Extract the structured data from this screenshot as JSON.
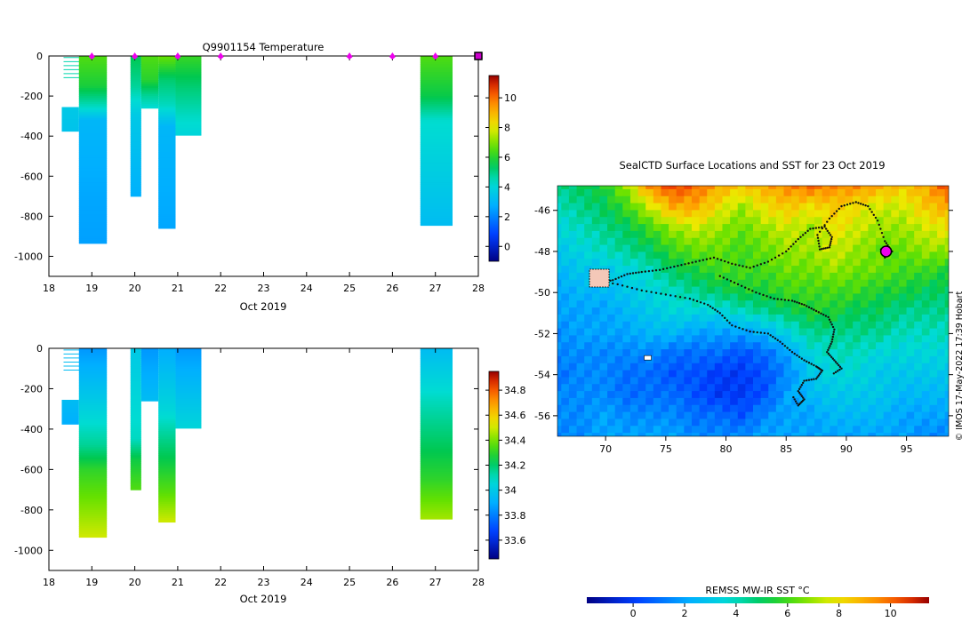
{
  "chart_data": [
    {
      "type": "heatmap",
      "title": "Q9901154  Temperature",
      "xlabel": "Oct 2019",
      "ylabel": "",
      "xlim": [
        18,
        28
      ],
      "ylim": [
        -1100,
        0
      ],
      "xticks": [
        "18",
        "19",
        "20",
        "21",
        "22",
        "23",
        "24",
        "25",
        "26",
        "27",
        "28"
      ],
      "yticks": [
        "0",
        "-200",
        "-400",
        "-600",
        "-800",
        "-1000"
      ],
      "colorbar": {
        "min": -1,
        "max": 11.5,
        "ticks": [
          "0",
          "2",
          "4",
          "6",
          "8",
          "10"
        ]
      },
      "profile_markers": [
        19,
        20,
        21,
        22,
        25,
        26,
        27
      ],
      "end_marker": 28,
      "profiles": [
        {
          "x0": 18.3,
          "x1": 18.7,
          "bottom": -375,
          "stops": [
            [
              0,
              4.6
            ],
            [
              -100,
              4.6
            ],
            [
              -255,
              4.2
            ],
            [
              -260,
              3.6
            ],
            [
              -375,
              3.4
            ]
          ],
          "partial_top": -255
        },
        {
          "x0": 18.7,
          "x1": 19.35,
          "bottom": -935,
          "stops": [
            [
              0,
              6.5
            ],
            [
              -150,
              5.8
            ],
            [
              -260,
              4.3
            ],
            [
              -320,
              3.0
            ],
            [
              -720,
              2.6
            ],
            [
              -935,
              2.5
            ]
          ]
        },
        {
          "x0": 19.9,
          "x1": 20.15,
          "bottom": -700,
          "stops": [
            [
              0,
              5.5
            ],
            [
              -150,
              4.8
            ],
            [
              -300,
              3.6
            ],
            [
              -700,
              2.8
            ]
          ]
        },
        {
          "x0": 20.15,
          "x1": 20.55,
          "bottom": -260,
          "stops": [
            [
              0,
              6.5
            ],
            [
              -120,
              6.0
            ],
            [
              -200,
              4.8
            ],
            [
              -260,
              4.2
            ]
          ]
        },
        {
          "x0": 20.55,
          "x1": 20.95,
          "bottom": -860,
          "stops": [
            [
              0,
              6.8
            ],
            [
              -120,
              5.2
            ],
            [
              -250,
              4.4
            ],
            [
              -350,
              3.0
            ],
            [
              -860,
              2.6
            ]
          ]
        },
        {
          "x0": 20.95,
          "x1": 21.55,
          "bottom": -395,
          "stops": [
            [
              0,
              6.2
            ],
            [
              -150,
              5.2
            ],
            [
              -300,
              4.4
            ],
            [
              -395,
              4.0
            ]
          ]
        },
        {
          "x0": 26.65,
          "x1": 27.4,
          "bottom": -845,
          "stops": [
            [
              0,
              6.5
            ],
            [
              -200,
              5.6
            ],
            [
              -320,
              4.3
            ],
            [
              -500,
              3.9
            ],
            [
              -845,
              3.2
            ]
          ]
        }
      ]
    },
    {
      "type": "heatmap",
      "title": "",
      "xlabel": "Oct 2019",
      "ylabel": "",
      "xlim": [
        18,
        28
      ],
      "ylim": [
        -1100,
        0
      ],
      "xticks": [
        "18",
        "19",
        "20",
        "21",
        "22",
        "23",
        "24",
        "25",
        "26",
        "27",
        "28"
      ],
      "yticks": [
        "0",
        "-200",
        "-400",
        "-600",
        "-800",
        "-1000"
      ],
      "colorbar": {
        "min": 33.45,
        "max": 34.95,
        "ticks": [
          "33.6",
          "33.8",
          "34",
          "34.2",
          "34.4",
          "34.6",
          "34.8"
        ]
      },
      "profiles": [
        {
          "x0": 18.3,
          "x1": 18.7,
          "bottom": -375,
          "stops": [
            [
              -255,
              33.95
            ],
            [
              -375,
              33.9
            ]
          ],
          "partial_top": -255
        },
        {
          "x0": 18.7,
          "x1": 19.35,
          "bottom": -935,
          "stops": [
            [
              0,
              33.85
            ],
            [
              -250,
              34.0
            ],
            [
              -480,
              34.15
            ],
            [
              -600,
              34.3
            ],
            [
              -800,
              34.42
            ],
            [
              -935,
              34.5
            ]
          ]
        },
        {
          "x0": 19.9,
          "x1": 20.15,
          "bottom": -700,
          "stops": [
            [
              0,
              34.0
            ],
            [
              -450,
              34.1
            ],
            [
              -550,
              34.25
            ],
            [
              -700,
              34.35
            ]
          ]
        },
        {
          "x0": 20.15,
          "x1": 20.55,
          "bottom": -260,
          "stops": [
            [
              0,
              33.85
            ],
            [
              -260,
              33.95
            ]
          ]
        },
        {
          "x0": 20.55,
          "x1": 20.95,
          "bottom": -860,
          "stops": [
            [
              0,
              33.9
            ],
            [
              -300,
              34.05
            ],
            [
              -500,
              34.2
            ],
            [
              -700,
              34.35
            ],
            [
              -860,
              34.5
            ]
          ]
        },
        {
          "x0": 20.95,
          "x1": 21.55,
          "bottom": -395,
          "stops": [
            [
              0,
              33.85
            ],
            [
              -200,
              33.95
            ],
            [
              -395,
              34.05
            ]
          ]
        },
        {
          "x0": 26.65,
          "x1": 27.4,
          "bottom": -845,
          "stops": [
            [
              0,
              33.95
            ],
            [
              -250,
              34.1
            ],
            [
              -450,
              34.2
            ],
            [
              -650,
              34.3
            ],
            [
              -845,
              34.45
            ]
          ]
        }
      ]
    },
    {
      "type": "heatmap",
      "title": "SealCTD Surface Locations and SST for 23 Oct 2019",
      "xlabel": "",
      "ylabel": "",
      "xlim": [
        66,
        98.5
      ],
      "ylim": [
        -57,
        -44.8
      ],
      "xticks": [
        "70",
        "75",
        "80",
        "85",
        "90",
        "95"
      ],
      "yticks": [
        "-46",
        "-48",
        "-50",
        "-52",
        "-54",
        "-56"
      ],
      "colorbar": {
        "label": "REMSS MW-IR SST °C",
        "min": -1.8,
        "max": 11.5,
        "ticks": [
          "0",
          "2",
          "4",
          "6",
          "8",
          "10"
        ]
      },
      "side_label": "© IMOS 17-May-2022 17:39 Hobart",
      "sst_field": [
        [
          4.5,
          5.0,
          5.5,
          7.0,
          9.5,
          10.5,
          10.0,
          9.0,
          8.5,
          9.0,
          9.5,
          10.0,
          9.5,
          9.5,
          9.0,
          8.5,
          9.0,
          10.5
        ],
        [
          4.0,
          4.5,
          5.0,
          6.0,
          7.5,
          9.0,
          9.0,
          8.0,
          7.0,
          8.0,
          8.5,
          8.0,
          8.5,
          8.0,
          7.5,
          7.5,
          8.5,
          9.0
        ],
        [
          3.5,
          4.0,
          4.5,
          5.0,
          6.0,
          7.0,
          7.5,
          7.0,
          6.5,
          7.0,
          7.5,
          7.0,
          8.0,
          7.5,
          7.0,
          7.0,
          7.5,
          8.0
        ],
        [
          3.0,
          3.5,
          4.0,
          4.5,
          5.0,
          6.0,
          6.5,
          6.5,
          6.0,
          6.5,
          7.0,
          7.0,
          7.5,
          7.0,
          6.5,
          6.5,
          7.0,
          7.0
        ],
        [
          2.5,
          3.0,
          3.0,
          3.5,
          4.0,
          5.0,
          5.5,
          6.0,
          6.0,
          6.0,
          6.5,
          6.5,
          7.0,
          6.5,
          6.5,
          6.0,
          6.0,
          5.5
        ],
        [
          2.0,
          2.5,
          2.5,
          3.0,
          3.5,
          4.0,
          4.5,
          5.0,
          5.5,
          5.5,
          6.0,
          6.0,
          6.0,
          6.0,
          5.5,
          5.5,
          5.0,
          5.0
        ],
        [
          2.0,
          2.0,
          2.0,
          2.5,
          3.0,
          3.5,
          3.5,
          3.5,
          4.0,
          4.5,
          5.0,
          5.5,
          5.5,
          5.0,
          5.0,
          4.5,
          4.5,
          4.5
        ],
        [
          1.5,
          2.0,
          2.0,
          2.0,
          2.5,
          2.5,
          2.0,
          2.0,
          2.0,
          2.5,
          3.5,
          4.5,
          4.5,
          4.5,
          4.5,
          4.0,
          4.0,
          4.0
        ],
        [
          1.5,
          1.5,
          1.5,
          1.5,
          1.5,
          1.0,
          1.0,
          1.0,
          0.5,
          1.0,
          2.0,
          3.5,
          4.0,
          4.0,
          3.5,
          3.5,
          3.5,
          3.5
        ],
        [
          1.0,
          1.5,
          1.5,
          1.0,
          1.0,
          0.5,
          0.5,
          0.0,
          0.0,
          0.5,
          1.5,
          3.0,
          3.5,
          3.5,
          3.0,
          3.0,
          3.0,
          3.0
        ],
        [
          1.5,
          1.5,
          1.5,
          1.0,
          1.0,
          1.0,
          0.5,
          0.0,
          0.0,
          0.5,
          2.0,
          2.5,
          3.0,
          3.0,
          3.0,
          2.5,
          2.5,
          2.5
        ],
        [
          1.5,
          1.5,
          2.0,
          1.5,
          1.5,
          1.5,
          1.0,
          1.0,
          0.5,
          1.5,
          2.0,
          2.0,
          2.5,
          2.5,
          2.5,
          2.0,
          2.0,
          2.0
        ],
        [
          1.5,
          1.5,
          2.0,
          2.0,
          2.0,
          2.0,
          1.5,
          1.5,
          1.5,
          2.0,
          2.0,
          2.0,
          2.0,
          2.0,
          2.0,
          2.0,
          1.5,
          1.5
        ]
      ],
      "track": [
        [
          68.8,
          -49.3
        ],
        [
          69.6,
          -49.5
        ],
        [
          70.6,
          -49.4
        ],
        [
          71.8,
          -49.1
        ],
        [
          73.0,
          -49.0
        ],
        [
          74.5,
          -48.9
        ],
        [
          76.0,
          -48.7
        ],
        [
          77.5,
          -48.5
        ],
        [
          79.0,
          -48.3
        ],
        [
          80.5,
          -48.6
        ],
        [
          82.0,
          -48.8
        ],
        [
          83.5,
          -48.5
        ],
        [
          85.0,
          -48.0
        ],
        [
          86.0,
          -47.4
        ],
        [
          87.0,
          -46.9
        ],
        [
          88.2,
          -46.8
        ],
        [
          88.8,
          -47.3
        ],
        [
          88.6,
          -47.8
        ],
        [
          87.8,
          -47.9
        ],
        [
          87.6,
          -47.2
        ],
        [
          88.6,
          -46.4
        ],
        [
          89.6,
          -45.8
        ],
        [
          90.8,
          -45.6
        ],
        [
          91.8,
          -45.8
        ],
        [
          92.6,
          -46.5
        ],
        [
          93.2,
          -47.5
        ],
        [
          93.8,
          -48.0
        ],
        [
          93.2,
          -48.3
        ],
        [
          92.8,
          -47.8
        ]
      ],
      "track2": [
        [
          69.0,
          -49.4
        ],
        [
          71.0,
          -49.6
        ],
        [
          73.0,
          -49.9
        ],
        [
          75.0,
          -50.1
        ],
        [
          77.0,
          -50.3
        ],
        [
          78.5,
          -50.6
        ],
        [
          79.5,
          -51.0
        ],
        [
          80.5,
          -51.6
        ],
        [
          82.0,
          -51.9
        ],
        [
          83.5,
          -52.0
        ],
        [
          84.5,
          -52.4
        ],
        [
          85.5,
          -52.9
        ],
        [
          86.5,
          -53.3
        ],
        [
          87.5,
          -53.6
        ],
        [
          88.0,
          -53.8
        ],
        [
          87.5,
          -54.2
        ],
        [
          86.5,
          -54.3
        ],
        [
          86.0,
          -54.8
        ],
        [
          86.5,
          -55.2
        ],
        [
          86.0,
          -55.5
        ],
        [
          85.5,
          -55.0
        ]
      ],
      "track3": [
        [
          79.5,
          -49.2
        ],
        [
          81.0,
          -49.6
        ],
        [
          82.5,
          -50.0
        ],
        [
          84.0,
          -50.3
        ],
        [
          85.5,
          -50.4
        ],
        [
          86.5,
          -50.6
        ],
        [
          87.5,
          -50.9
        ],
        [
          88.5,
          -51.2
        ],
        [
          89.0,
          -51.8
        ],
        [
          88.8,
          -52.4
        ],
        [
          88.4,
          -52.9
        ],
        [
          89.0,
          -53.3
        ],
        [
          89.6,
          -53.7
        ],
        [
          88.8,
          -54.0
        ]
      ],
      "position_markers": [
        [
          69.4,
          -49.3
        ],
        [
          93.3,
          -48.0
        ]
      ],
      "small_marker": [
        73.5,
        -53.2
      ]
    }
  ]
}
